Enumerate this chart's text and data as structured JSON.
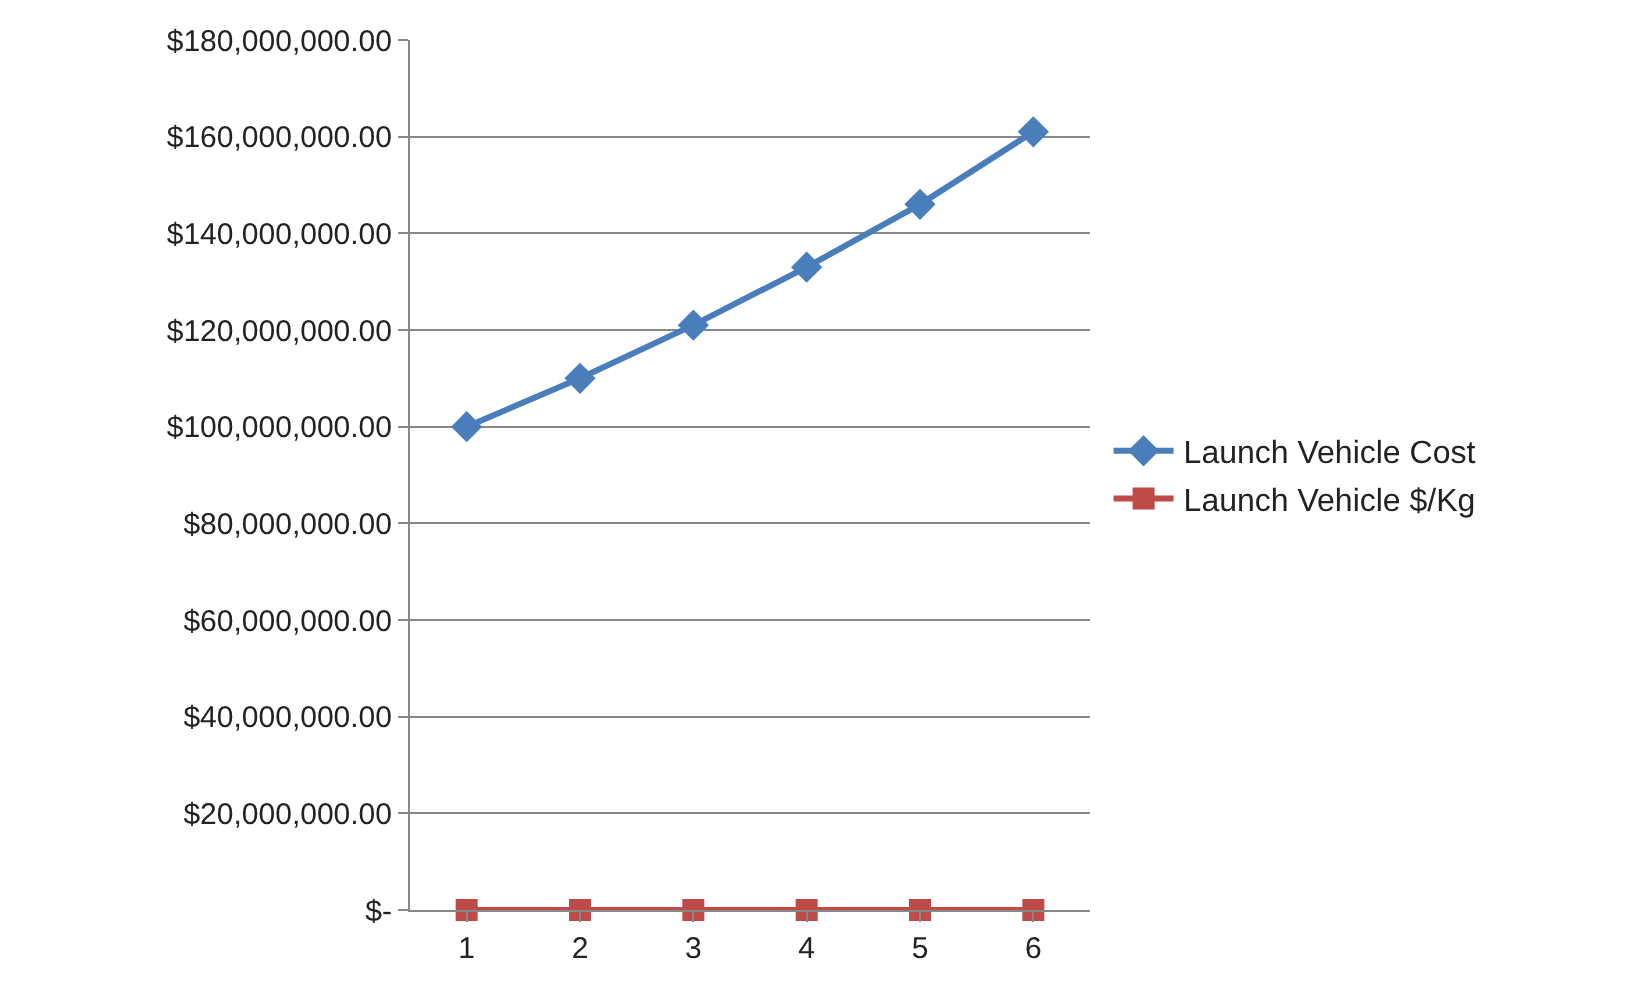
{
  "chart_data": {
    "type": "line",
    "categories": [
      "1",
      "2",
      "3",
      "4",
      "5",
      "6"
    ],
    "series": [
      {
        "name": "Launch Vehicle Cost",
        "color": "#4a7ebb",
        "marker": "diamond",
        "values": [
          100000000,
          110000000,
          121000000,
          133000000,
          146000000,
          161000000
        ]
      },
      {
        "name": "Launch Vehicle $/Kg",
        "color": "#be4b48",
        "marker": "square",
        "values": [
          0,
          0,
          0,
          0,
          0,
          0
        ]
      }
    ],
    "ylim": [
      0,
      180000000
    ],
    "yticks": [
      {
        "value": 0,
        "label": "$-"
      },
      {
        "value": 20000000,
        "label": "$20,000,000.00"
      },
      {
        "value": 40000000,
        "label": "$40,000,000.00"
      },
      {
        "value": 60000000,
        "label": "$60,000,000.00"
      },
      {
        "value": 80000000,
        "label": "$80,000,000.00"
      },
      {
        "value": 100000000,
        "label": "$100,000,000.00"
      },
      {
        "value": 120000000,
        "label": "$120,000,000.00"
      },
      {
        "value": 140000000,
        "label": "$140,000,000.00"
      },
      {
        "value": 160000000,
        "label": "$160,000,000.00"
      },
      {
        "value": 180000000,
        "label": "$180,000,000.00"
      }
    ],
    "grid": "y",
    "legend": "right"
  }
}
